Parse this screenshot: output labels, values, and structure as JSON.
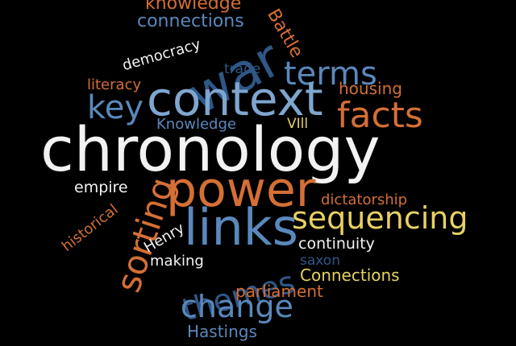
{
  "colors": {
    "background": "#000000",
    "white": "#f2f2f2",
    "light_blue": "#7fa6cf",
    "mid_blue": "#5a88bb",
    "dark_blue": "#2f5787",
    "orange": "#d46f35",
    "yellow": "#e6d163"
  },
  "words": [
    {
      "text": "knowledge",
      "color": "orange"
    },
    {
      "text": "connections",
      "color": "mid_blue"
    },
    {
      "text": "Battle",
      "color": "orange"
    },
    {
      "text": "war",
      "color": "dark_blue"
    },
    {
      "text": "democracy",
      "color": "white"
    },
    {
      "text": "trade",
      "color": "dark_blue"
    },
    {
      "text": "terms",
      "color": "mid_blue"
    },
    {
      "text": "literacy",
      "color": "orange"
    },
    {
      "text": "housing",
      "color": "orange"
    },
    {
      "text": "context",
      "color": "light_blue"
    },
    {
      "text": "key",
      "color": "mid_blue"
    },
    {
      "text": "facts",
      "color": "orange"
    },
    {
      "text": "Knowledge",
      "color": "mid_blue"
    },
    {
      "text": "VIll",
      "color": "yellow"
    },
    {
      "text": "chronology",
      "color": "white"
    },
    {
      "text": "empire",
      "color": "white"
    },
    {
      "text": "power",
      "color": "orange"
    },
    {
      "text": "sorting",
      "color": "orange"
    },
    {
      "text": "dictatorship",
      "color": "orange"
    },
    {
      "text": "historical",
      "color": "orange"
    },
    {
      "text": "Henry",
      "color": "white"
    },
    {
      "text": "links",
      "color": "mid_blue"
    },
    {
      "text": "sequencing",
      "color": "yellow"
    },
    {
      "text": "continuity",
      "color": "white"
    },
    {
      "text": "making",
      "color": "white"
    },
    {
      "text": "themes",
      "color": "dark_blue"
    },
    {
      "text": "saxon",
      "color": "dark_blue"
    },
    {
      "text": "Connections",
      "color": "yellow"
    },
    {
      "text": "parliament",
      "color": "orange"
    },
    {
      "text": "change",
      "color": "mid_blue"
    },
    {
      "text": "Hastings",
      "color": "mid_blue"
    }
  ]
}
